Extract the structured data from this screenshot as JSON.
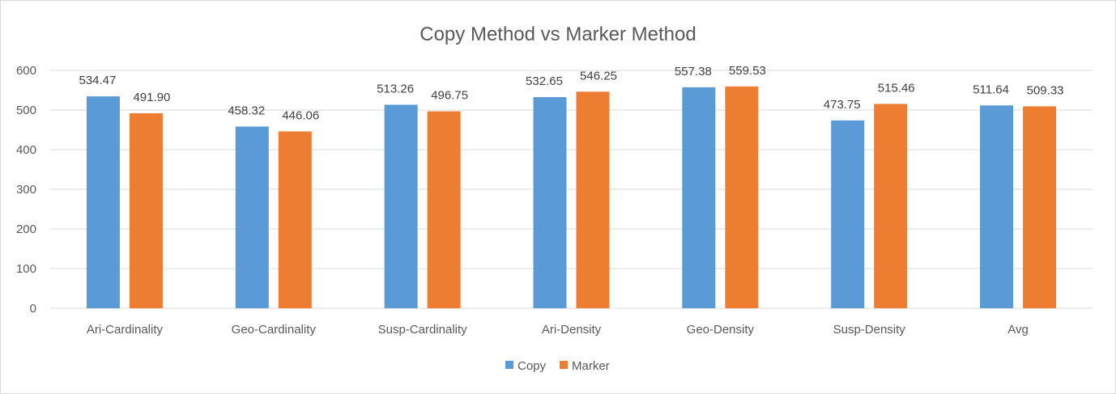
{
  "chart_data": {
    "type": "bar",
    "title": "Copy Method vs Marker Method",
    "categories": [
      "Ari-Cardinality",
      "Geo-Cardinality",
      "Susp-Cardinality",
      "Ari-Density",
      "Geo-Density",
      "Susp-Density",
      "Avg"
    ],
    "series": [
      {
        "name": "Copy",
        "color": "#5b9bd5",
        "values": [
          534.47,
          458.32,
          513.26,
          532.65,
          557.38,
          473.75,
          511.64
        ],
        "labels": [
          "534.47",
          "458.32",
          "513.26",
          "532.65",
          "557.38",
          "473.75",
          "511.64"
        ]
      },
      {
        "name": "Marker",
        "color": "#ed7d31",
        "values": [
          491.9,
          446.06,
          496.75,
          546.25,
          559.53,
          515.46,
          509.33
        ],
        "labels": [
          "491.90",
          "446.06",
          "496.75",
          "546.25",
          "559.53",
          "515.46",
          "509.33"
        ]
      }
    ],
    "ylim": [
      0,
      600
    ],
    "yticks": [
      "0",
      "100",
      "200",
      "300",
      "400",
      "500",
      "600"
    ],
    "grid": true,
    "legend_position": "bottom"
  }
}
